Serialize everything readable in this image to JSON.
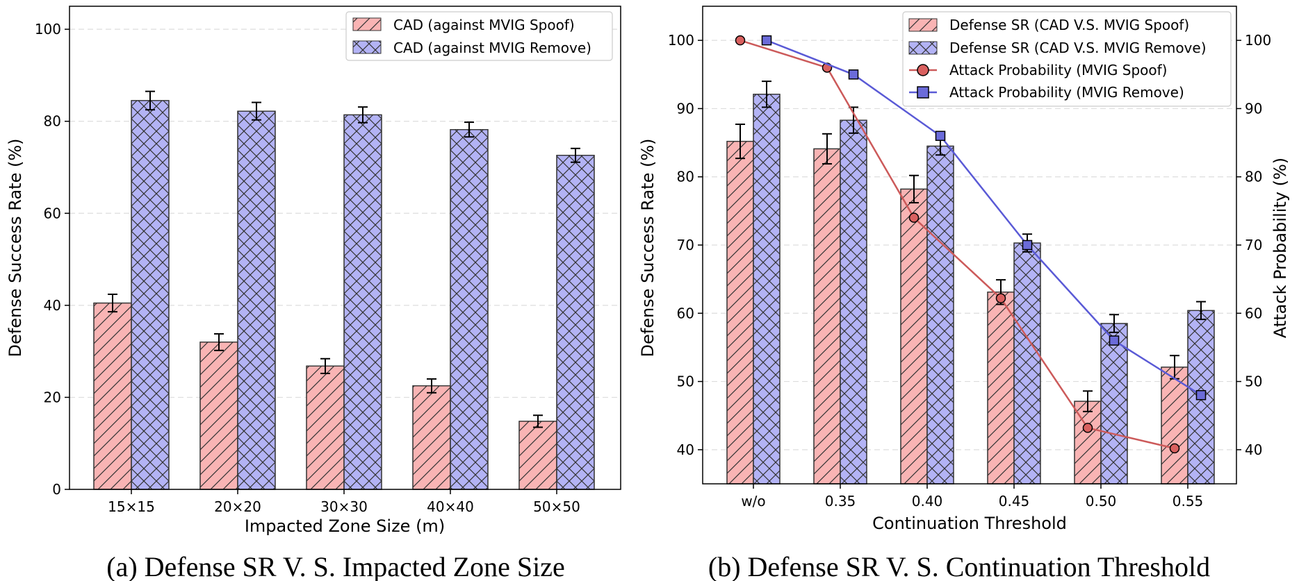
{
  "colors": {
    "spoof_fill": "#f9b4b4",
    "remove_fill": "#b3b3f5",
    "spoof_line": "#cc5a5a",
    "remove_line": "#5a5ad6",
    "marker_spoof": "#d9605f",
    "marker_remove": "#6b6bd9",
    "grid": "#dddddd",
    "edge": "#333333"
  },
  "chart_data": [
    {
      "type": "bar",
      "caption": "(a) Defense SR V. S. Impacted Zone Size",
      "xlabel": "Impacted Zone Size (m)",
      "ylabel": "Defense Success Rate (%)",
      "ylim": [
        0,
        105
      ],
      "yticks": [
        0,
        20,
        40,
        60,
        80,
        100
      ],
      "grid": true,
      "legend_position": "top-right",
      "categories": [
        "15×15",
        "20×20",
        "30×30",
        "40×40",
        "50×50"
      ],
      "series": [
        {
          "name": "CAD (against MVIG Spoof)",
          "hatch": "diag",
          "values": [
            40.5,
            32.0,
            26.8,
            22.5,
            14.8
          ],
          "errors": [
            1.9,
            1.8,
            1.6,
            1.5,
            1.3
          ]
        },
        {
          "name": "CAD (against MVIG Remove)",
          "hatch": "cross",
          "values": [
            84.5,
            82.2,
            81.4,
            78.2,
            72.6
          ],
          "errors": [
            2.0,
            1.9,
            1.7,
            1.6,
            1.5
          ]
        }
      ]
    },
    {
      "type": "bar+line",
      "caption": "(b) Defense SR V. S. Continuation Threshold",
      "xlabel": "Continuation Threshold",
      "ylabel": "Defense Success Rate (%)",
      "y2label": "Attack Probability (%)",
      "ylim": [
        35,
        105
      ],
      "yticks": [
        40,
        50,
        60,
        70,
        80,
        90,
        100
      ],
      "y2lim": [
        35,
        105
      ],
      "y2ticks": [
        40,
        50,
        60,
        70,
        80,
        90,
        100
      ],
      "grid": true,
      "legend_position": "top-right",
      "categories": [
        "w/o",
        "0.35",
        "0.40",
        "0.45",
        "0.50",
        "0.55"
      ],
      "series": [
        {
          "name": "Defense SR (CAD V.S. MVIG Spoof)",
          "kind": "bar",
          "hatch": "diag",
          "values": [
            85.2,
            84.1,
            78.2,
            63.1,
            47.1,
            52.1
          ],
          "errors": [
            2.5,
            2.2,
            2.0,
            1.8,
            1.5,
            1.7
          ]
        },
        {
          "name": "Defense SR (CAD V.S. MVIG Remove)",
          "kind": "bar",
          "hatch": "cross",
          "values": [
            92.1,
            88.3,
            84.5,
            70.3,
            58.5,
            60.4
          ],
          "errors": [
            1.9,
            1.9,
            1.3,
            1.3,
            1.3,
            1.3
          ]
        },
        {
          "name": "Attack Probability (MVIG Spoof)",
          "kind": "line",
          "marker": "circle",
          "values": [
            100,
            96,
            74,
            62.2,
            43.2,
            40.2
          ]
        },
        {
          "name": "Attack Probability (MVIG Remove)",
          "kind": "line",
          "marker": "square",
          "values": [
            100,
            95,
            86,
            70,
            56,
            48
          ]
        }
      ]
    }
  ]
}
